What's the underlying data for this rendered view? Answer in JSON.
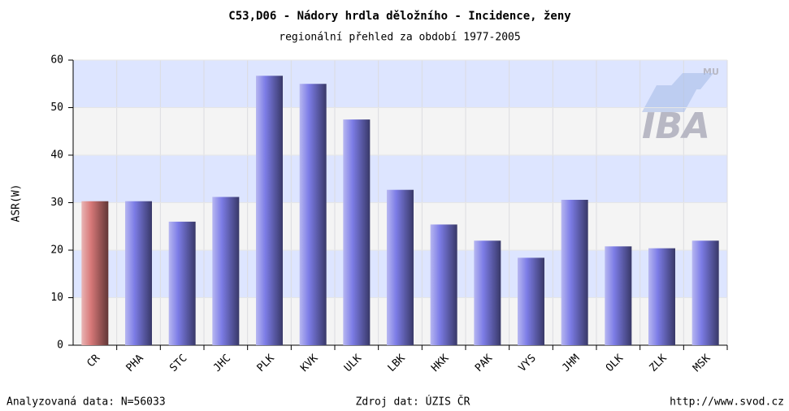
{
  "chart_data": {
    "type": "bar",
    "title": "C53,D06 - Nádory hrdla děložního - Incidence, ženy",
    "subtitle": "regionální přehled za období 1977-2005",
    "y_label": "ASR(W)",
    "categories": [
      "CR",
      "PHA",
      "STC",
      "JHC",
      "PLK",
      "KVK",
      "ULK",
      "LBK",
      "HKK",
      "PAK",
      "VYS",
      "JHM",
      "OLK",
      "ZLK",
      "MSK"
    ],
    "values": [
      30.3,
      30.3,
      26,
      31.2,
      56.7,
      55,
      47.5,
      32.7,
      25.4,
      22,
      18.4,
      30.6,
      20.8,
      20.4,
      22
    ],
    "colors": [
      "#d77878",
      "#7c7ce6",
      "#7c7ce6",
      "#7c7ce6",
      "#7c7ce6",
      "#7c7ce6",
      "#7c7ce6",
      "#7c7ce6",
      "#7c7ce6",
      "#7c7ce6",
      "#7c7ce6",
      "#7c7ce6",
      "#7c7ce6",
      "#7c7ce6",
      "#7c7ce6"
    ],
    "ylim": [
      0,
      60
    ],
    "yticks": [
      0,
      10,
      20,
      30,
      40,
      50,
      60
    ],
    "grid": true,
    "logo": {
      "text": "IBA",
      "sub": "MU"
    },
    "footer": {
      "left": "Analyzovaná data: N=56033",
      "center": "Zdroj dat: ÚZIS ČR",
      "right": "http://www.svod.cz"
    }
  }
}
